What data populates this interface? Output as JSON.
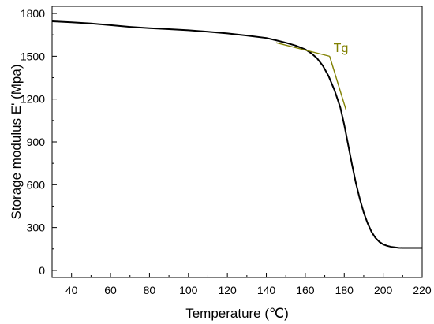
{
  "chart_data": {
    "type": "line",
    "xlabel": "Temperature (℃)",
    "ylabel": "Storage modulus E' (Mpa)",
    "xlim": [
      30,
      220
    ],
    "ylim": [
      -50,
      1850
    ],
    "x_ticks": [
      40,
      60,
      80,
      100,
      120,
      140,
      160,
      180,
      200,
      220
    ],
    "y_ticks": [
      0,
      300,
      600,
      900,
      1200,
      1500,
      1800
    ],
    "grid": false,
    "legend": "none",
    "series": [
      {
        "color": "#000000",
        "x": [
          30,
          40,
          50,
          60,
          70,
          80,
          90,
          100,
          110,
          120,
          130,
          140,
          145,
          150,
          155,
          160,
          163,
          166,
          169,
          172,
          175,
          178,
          180,
          182,
          184,
          186,
          188,
          190,
          192,
          194,
          196,
          198,
          200,
          202,
          204,
          206,
          208,
          210,
          212,
          215,
          218,
          220
        ],
        "y": [
          1745,
          1738,
          1730,
          1718,
          1706,
          1697,
          1690,
          1682,
          1672,
          1660,
          1645,
          1628,
          1612,
          1595,
          1575,
          1548,
          1522,
          1486,
          1434,
          1360,
          1262,
          1140,
          1020,
          880,
          740,
          610,
          500,
          405,
          330,
          270,
          228,
          200,
          182,
          172,
          165,
          161,
          158,
          157,
          157,
          157,
          157,
          157
        ]
      }
    ],
    "annotations": [
      {
        "text": "Tg",
        "color": "#808000",
        "tangent_lines": [
          {
            "x": [
              145,
              172.5
            ],
            "y": [
              1595,
              1500
            ]
          },
          {
            "x": [
              172.5,
              181
            ],
            "y": [
              1500,
              1120
            ]
          }
        ],
        "label_at": {
          "x": 174.5,
          "y": 1530
        }
      }
    ]
  }
}
